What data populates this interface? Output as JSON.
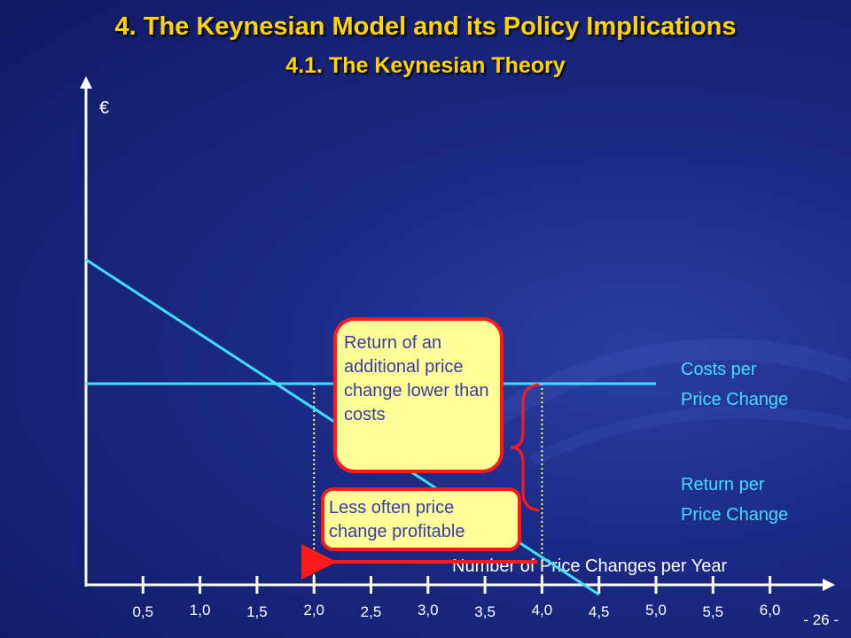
{
  "slide": {
    "title": "4. The Keynesian Model and its Policy Implications",
    "subtitle": "4.1. The Keynesian Theory",
    "page_number": "- 26 -"
  },
  "colors": {
    "title": "#ffd400",
    "line": "#3fe0ff",
    "callout_fill": "#ffff99",
    "callout_border": "#ff1a1a",
    "callout_text": "#3a3aa8",
    "arrow": "#ff1a1a"
  },
  "chart_data": {
    "type": "line",
    "ylabel": "€",
    "xlabel": "Number of Price Changes per Year",
    "xlim": [
      0,
      6.5
    ],
    "ticks": [
      0.5,
      1.0,
      1.5,
      2.0,
      2.5,
      3.0,
      3.5,
      4.0,
      4.5,
      5.0,
      5.5,
      6.0
    ],
    "tick_labels": [
      "0,5",
      "1,0",
      "1,5",
      "2,0",
      "2,5",
      "3,0",
      "3,5",
      "4,0",
      "4,5",
      "5,0",
      "5,5",
      "6,0"
    ],
    "series": [
      {
        "name": "Costs per Price Change",
        "label_lines": [
          "Costs per",
          "Price Change"
        ],
        "x": [
          0,
          5.0
        ],
        "y": [
          1,
          1
        ]
      },
      {
        "name": "Return per Price Change",
        "label_lines": [
          "Return per",
          "Price Change"
        ],
        "x": [
          0,
          4.5
        ],
        "y": [
          2.0,
          -0.7
        ]
      }
    ],
    "reference_lines_x": [
      2.0,
      4.0
    ],
    "annotations": {
      "return_text": "Return of an additional price change lower than costs",
      "less_text": "Less often price change profitable"
    }
  }
}
